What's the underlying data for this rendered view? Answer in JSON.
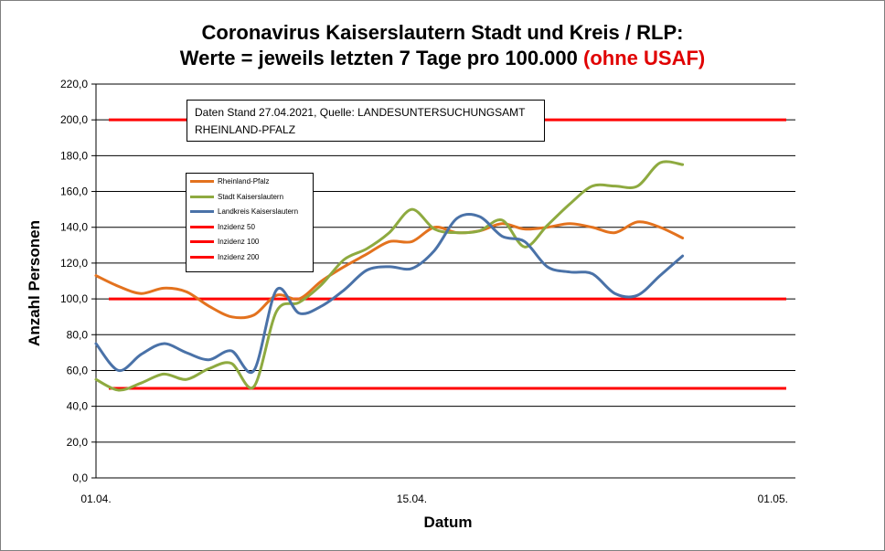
{
  "chart_data": {
    "type": "line",
    "title_line1": "Coronavirus Kaiserslautern Stadt und Kreis / RLP:",
    "title_line2": "Werte = jeweils letzten 7 Tage pro 100.000",
    "title_highlight": "(ohne USAF)",
    "note_line1": "Daten Stand 27.04.2021, Quelle: LANDESUNTERSUCHUNGSAMT",
    "note_line2": "RHEINLAND-PFALZ",
    "xlabel": "Datum",
    "ylabel": "Anzahl Personen",
    "ylim": [
      0,
      220
    ],
    "yticks": [
      "0,0",
      "20,0",
      "40,0",
      "60,0",
      "80,0",
      "100,0",
      "120,0",
      "140,0",
      "160,0",
      "180,0",
      "200,0",
      "220,0"
    ],
    "x_start_day": 1,
    "x_end_day": 32,
    "xticks": [
      {
        "label": "01.04.",
        "day": 1
      },
      {
        "label": "15.04.",
        "day": 15
      },
      {
        "label": "01.05.",
        "day": 31
      }
    ],
    "grid": true,
    "legend_position": "upper-left inside plot",
    "series": [
      {
        "name": "Rheinland-Pfalz",
        "color": "#e3721e",
        "values": [
          113,
          107,
          103,
          106,
          104,
          96,
          90,
          91,
          102,
          100,
          110,
          118,
          125,
          132,
          132,
          140,
          137,
          138,
          142,
          139,
          140,
          142,
          140,
          137,
          143,
          140,
          134
        ]
      },
      {
        "name": "Stadt Kaiserslautern",
        "color": "#8eaa40",
        "values": [
          55,
          49,
          53,
          58,
          55,
          61,
          64,
          51,
          93,
          98,
          108,
          122,
          128,
          137,
          150,
          139,
          137,
          138,
          144,
          129,
          141,
          153,
          163,
          163,
          163,
          176,
          175
        ]
      },
      {
        "name": "Landkreis Kaiserslautern",
        "color": "#4a72a8",
        "values": [
          75,
          60,
          69,
          75,
          70,
          66,
          71,
          60,
          105,
          92,
          96,
          105,
          116,
          118,
          117,
          127,
          145,
          146,
          135,
          132,
          118,
          115,
          114,
          103,
          102,
          113,
          124
        ]
      }
    ],
    "reference_lines": [
      {
        "name": "Inzidenz 50",
        "value": 50,
        "color": "#ff0000"
      },
      {
        "name": "Inzidenz 100",
        "value": 100,
        "color": "#ff0000"
      },
      {
        "name": "Inzidenz 200",
        "value": 200,
        "color": "#ff0000"
      }
    ]
  }
}
